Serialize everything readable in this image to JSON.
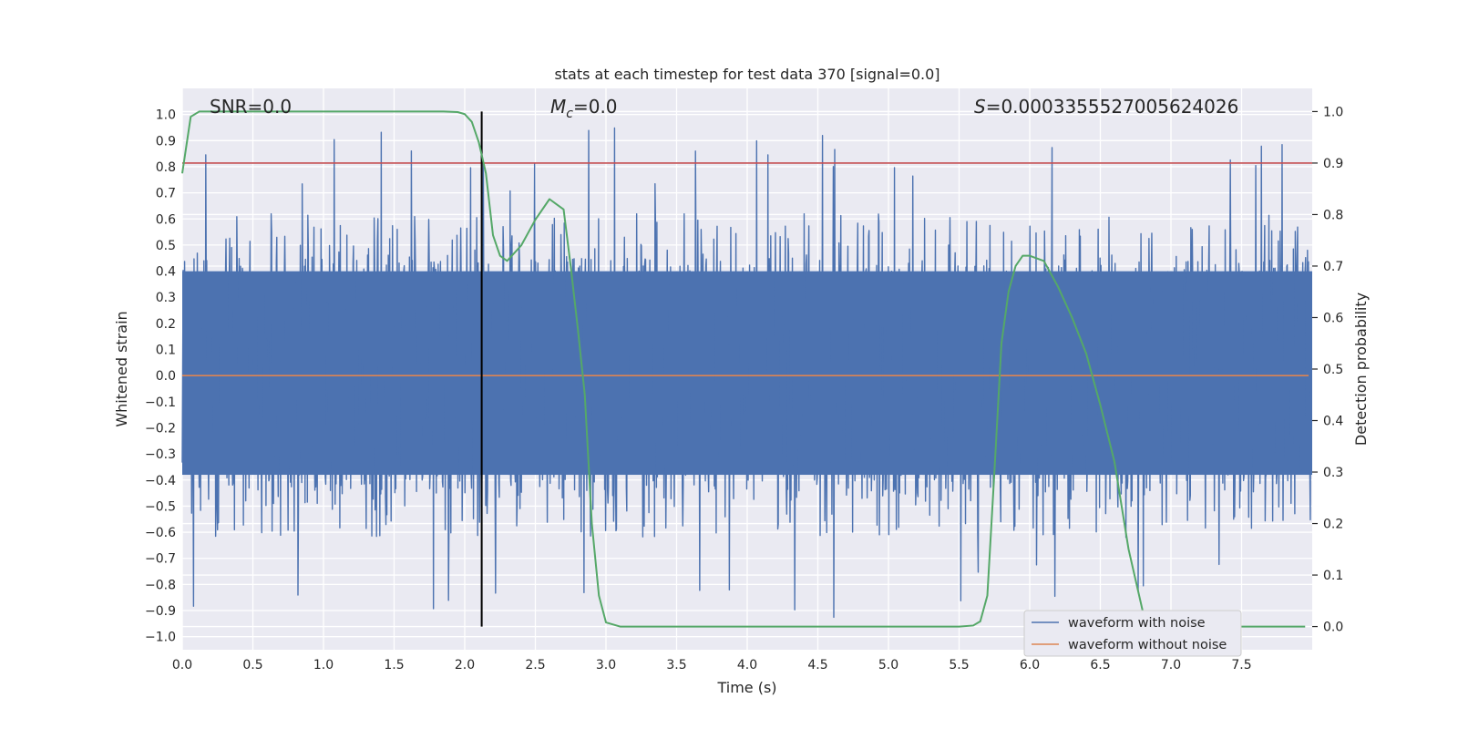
{
  "chart_data": {
    "type": "line",
    "title": "stats at each timestep for test data 370 [signal=0.0]",
    "xlabel": "Time (s)",
    "ylabel_left": "Whitened strain",
    "ylabel_right": "Detection probability",
    "xlim": [
      0.0,
      8.0
    ],
    "ylim_left": [
      -1.05,
      1.1
    ],
    "ylim_right": [
      -0.045,
      1.045
    ],
    "xticks": [
      "0.0",
      "0.5",
      "1.0",
      "1.5",
      "2.0",
      "2.5",
      "3.0",
      "3.5",
      "4.0",
      "4.5",
      "5.0",
      "5.5",
      "6.0",
      "6.5",
      "7.0",
      "7.5"
    ],
    "yticks_left": [
      "1.0",
      "0.9",
      "0.8",
      "0.7",
      "0.6",
      "0.5",
      "0.4",
      "0.3",
      "0.2",
      "0.1",
      "0.0",
      "-0.1",
      "-0.2",
      "-0.3",
      "-0.4",
      "-0.5",
      "-0.6",
      "-0.7",
      "-0.8",
      "-0.9",
      "-1.0"
    ],
    "yticks_right": [
      "1.0",
      "0.9",
      "0.8",
      "0.7",
      "0.6",
      "0.5",
      "0.4",
      "0.3",
      "0.2",
      "0.1",
      "0.0"
    ],
    "annotations": {
      "snr": "SNR=0.0",
      "mc_symbol": "M",
      "mc_sub": "c",
      "mc_value": "=0.0",
      "s_symbol": "S",
      "s_value": "=0.0003355527005624026"
    },
    "threshold": {
      "axis": "right",
      "value": 0.9,
      "color": "#c44e52"
    },
    "marker_time": 2.12,
    "series": [
      {
        "name": "waveform with noise",
        "axis": "left",
        "color": "#4c72b0",
        "kind": "noise",
        "typical_range": [
          -0.5,
          0.5
        ],
        "max": 0.98,
        "min": -0.96
      },
      {
        "name": "waveform without noise",
        "axis": "left",
        "color": "#dd8452",
        "x": [
          0.0,
          8.0
        ],
        "values": [
          0.0,
          0.0
        ]
      },
      {
        "name": "detection probability",
        "axis": "right",
        "color": "#55a868",
        "x": [
          0.0,
          0.06,
          0.12,
          0.5,
          1.0,
          1.5,
          1.85,
          1.95,
          2.0,
          2.05,
          2.1,
          2.15,
          2.2,
          2.25,
          2.3,
          2.4,
          2.5,
          2.6,
          2.65,
          2.7,
          2.75,
          2.8,
          2.85,
          2.9,
          2.95,
          3.0,
          3.1,
          3.5,
          4.0,
          4.5,
          5.0,
          5.5,
          5.6,
          5.65,
          5.7,
          5.75,
          5.8,
          5.85,
          5.9,
          5.95,
          6.0,
          6.1,
          6.2,
          6.3,
          6.4,
          6.5,
          6.6,
          6.7,
          6.8,
          6.9,
          7.0,
          7.5,
          7.95
        ],
        "values": [
          0.88,
          0.99,
          1.0,
          1.0,
          1.0,
          1.0,
          1.0,
          0.999,
          0.995,
          0.98,
          0.94,
          0.88,
          0.76,
          0.72,
          0.71,
          0.74,
          0.79,
          0.83,
          0.82,
          0.81,
          0.7,
          0.58,
          0.45,
          0.2,
          0.06,
          0.008,
          0.0,
          0.0,
          0.0,
          0.0,
          0.0,
          0.0,
          0.002,
          0.01,
          0.06,
          0.3,
          0.55,
          0.65,
          0.7,
          0.72,
          0.72,
          0.71,
          0.66,
          0.6,
          0.53,
          0.43,
          0.32,
          0.15,
          0.03,
          0.01,
          0.0,
          0.0,
          0.0
        ]
      }
    ],
    "legend": {
      "position": "lower-right",
      "entries": [
        "waveform with noise",
        "waveform without noise"
      ]
    },
    "colors": {
      "background": "#eaeaf2",
      "grid": "#ffffff",
      "marker_line": "#000000"
    }
  }
}
